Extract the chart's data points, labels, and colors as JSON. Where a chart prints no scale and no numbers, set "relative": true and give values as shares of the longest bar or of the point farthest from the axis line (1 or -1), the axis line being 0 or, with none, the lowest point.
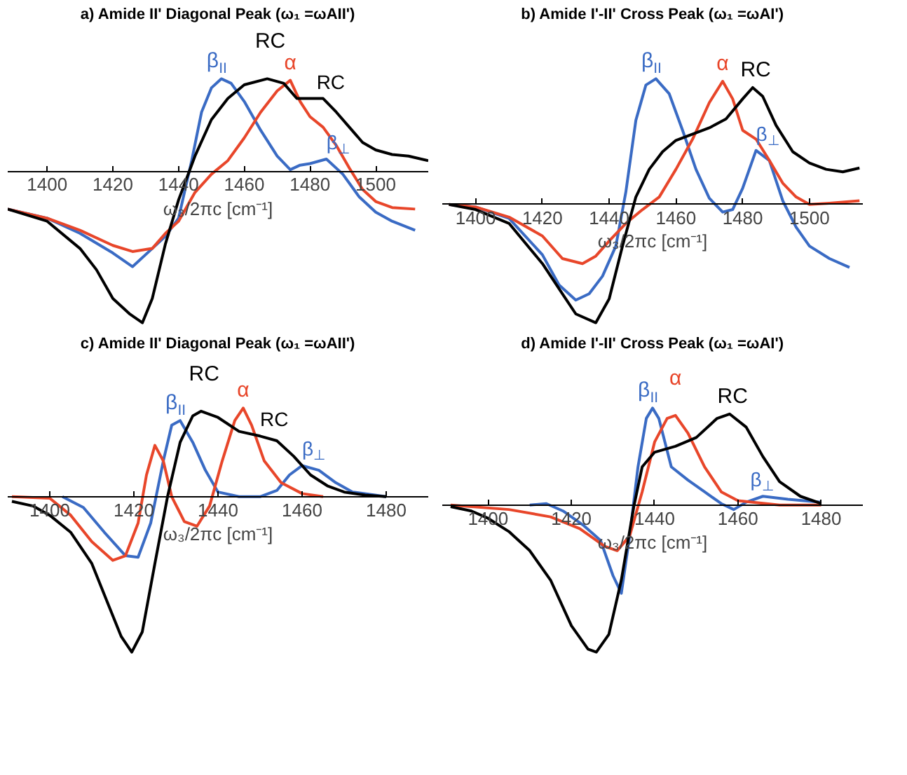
{
  "chart_data": [
    {
      "type": "line",
      "relative": true,
      "title": "a) Amide II' Diagonal Peak (ω₁ =ωAII')",
      "xlabel": "ω₃/2πc [cm⁻¹]",
      "xlim": [
        1388,
        1516
      ],
      "xticks": [
        1400,
        1420,
        1440,
        1460,
        1480,
        1500
      ],
      "annotations": [
        {
          "text": "β$_{⊥}$",
          "x": 1485,
          "y": 0.08
        },
        {
          "text": "RC",
          "x": 1482,
          "y": 0.48
        }
      ],
      "series": [
        {
          "name": "β$_{II}$",
          "color": "#3a6bc4",
          "x": [
            1388,
            1400,
            1410,
            1420,
            1426,
            1432,
            1436,
            1440,
            1444,
            1447,
            1450,
            1453,
            1456,
            1460,
            1465,
            1470,
            1474,
            1477,
            1480,
            1485,
            1490,
            1495,
            1500,
            1505,
            1512
          ],
          "values": [
            -0.25,
            -0.31,
            -0.41,
            -0.54,
            -0.63,
            -0.51,
            -0.43,
            -0.31,
            0.07,
            0.39,
            0.55,
            0.61,
            0.58,
            0.46,
            0.27,
            0.1,
            0.01,
            0.04,
            0.05,
            0.08,
            -0.02,
            -0.17,
            -0.27,
            -0.33,
            -0.39
          ]
        },
        {
          "name": "α",
          "color": "#e8462a",
          "x": [
            1388,
            1400,
            1410,
            1420,
            1426,
            1432,
            1436,
            1440,
            1445,
            1450,
            1455,
            1460,
            1465,
            1470,
            1474,
            1477,
            1480,
            1484,
            1488,
            1492,
            1496,
            1500,
            1505,
            1512
          ],
          "values": [
            -0.25,
            -0.31,
            -0.39,
            -0.49,
            -0.53,
            -0.51,
            -0.41,
            -0.33,
            -0.14,
            -0.02,
            0.07,
            0.22,
            0.39,
            0.53,
            0.6,
            0.46,
            0.36,
            0.29,
            0.17,
            0.02,
            -0.12,
            -0.2,
            -0.24,
            -0.25
          ]
        },
        {
          "name": "RC",
          "color": "#000000",
          "x": [
            1388,
            1400,
            1410,
            1415,
            1420,
            1425,
            1429,
            1432,
            1436,
            1440,
            1445,
            1450,
            1455,
            1460,
            1467,
            1472,
            1476,
            1480,
            1484,
            1488,
            1492,
            1496,
            1500,
            1505,
            1510,
            1516
          ],
          "values": [
            -0.25,
            -0.33,
            -0.51,
            -0.65,
            -0.84,
            -0.94,
            -1.0,
            -0.84,
            -0.48,
            -0.19,
            0.1,
            0.34,
            0.48,
            0.57,
            0.61,
            0.58,
            0.48,
            0.48,
            0.48,
            0.39,
            0.29,
            0.19,
            0.14,
            0.11,
            0.1,
            0.07
          ]
        }
      ]
    },
    {
      "type": "line",
      "relative": true,
      "title": "b) Amide I'-II' Cross Peak (ω₁ =ωAI')",
      "xlabel": "ω₃/2πc [cm⁻¹]",
      "xlim": [
        1390,
        1516
      ],
      "xticks": [
        1400,
        1420,
        1440,
        1460,
        1480,
        1500
      ],
      "annotations": [
        {
          "text": "β$_{⊥}$",
          "x": 1484,
          "y": 0.43
        }
      ],
      "series": [
        {
          "name": "β$_{II}$",
          "color": "#3a6bc4",
          "x": [
            1392,
            1400,
            1410,
            1420,
            1425,
            1430,
            1434,
            1438,
            1442,
            1445,
            1448,
            1451,
            1454,
            1458,
            1462,
            1466,
            1470,
            1474,
            1477,
            1480,
            1484,
            1488,
            1492,
            1496,
            1500,
            1506,
            1512
          ],
          "values": [
            0,
            -0.02,
            -0.11,
            -0.4,
            -0.64,
            -0.76,
            -0.71,
            -0.57,
            -0.33,
            0.1,
            0.67,
            0.95,
            1.0,
            0.88,
            0.59,
            0.28,
            0.05,
            -0.06,
            -0.04,
            0.13,
            0.43,
            0.35,
            0.03,
            -0.18,
            -0.33,
            -0.43,
            -0.5
          ]
        },
        {
          "name": "α",
          "color": "#e8462a",
          "x": [
            1392,
            1400,
            1410,
            1420,
            1426,
            1432,
            1436,
            1440,
            1445,
            1450,
            1455,
            1460,
            1465,
            1470,
            1474,
            1477,
            1480,
            1484,
            1488,
            1492,
            1496,
            1500,
            1506,
            1515
          ],
          "values": [
            0,
            -0.02,
            -0.1,
            -0.25,
            -0.43,
            -0.47,
            -0.41,
            -0.29,
            -0.15,
            -0.04,
            0.06,
            0.28,
            0.52,
            0.81,
            0.98,
            0.84,
            0.59,
            0.52,
            0.35,
            0.17,
            0.06,
            0,
            0.01,
            0.03
          ]
        },
        {
          "name": "RC",
          "color": "#000000",
          "x": [
            1392,
            1400,
            1410,
            1420,
            1426,
            1430,
            1436,
            1440,
            1444,
            1448,
            1452,
            1456,
            1460,
            1465,
            1470,
            1475,
            1480,
            1483,
            1486,
            1490,
            1495,
            1500,
            1505,
            1510,
            1515
          ],
          "values": [
            0,
            -0.04,
            -0.15,
            -0.47,
            -0.71,
            -0.87,
            -0.94,
            -0.75,
            -0.33,
            0.06,
            0.28,
            0.42,
            0.51,
            0.56,
            0.61,
            0.68,
            0.84,
            0.93,
            0.86,
            0.63,
            0.42,
            0.33,
            0.28,
            0.26,
            0.29
          ]
        }
      ]
    },
    {
      "type": "line",
      "relative": true,
      "title": "c) Amide II' Diagonal Peak (ω₁ =ωAII')",
      "xlabel": "ω₃/2πc [cm⁻¹]",
      "xlim": [
        1390,
        1490
      ],
      "xticks": [
        1400,
        1420,
        1440,
        1460,
        1480
      ],
      "annotations": [
        {
          "text": "β$_{⊥}$",
          "x": 1460,
          "y": 0.2
        },
        {
          "text": "RC",
          "x": 1450,
          "y": 0.39
        }
      ],
      "series": [
        {
          "name": "β$_{II}$",
          "color": "#3a6bc4",
          "x": [
            1403,
            1408,
            1413,
            1418,
            1421,
            1424,
            1427,
            1429,
            1431,
            1434,
            1437,
            1440,
            1445,
            1450,
            1454,
            1457,
            1460,
            1464,
            1468,
            1472,
            1480
          ],
          "values": [
            0,
            -0.07,
            -0.23,
            -0.38,
            -0.39,
            -0.17,
            0.23,
            0.46,
            0.49,
            0.35,
            0.17,
            0.03,
            0,
            0,
            0.04,
            0.14,
            0.2,
            0.17,
            0.09,
            0.03,
            0
          ]
        },
        {
          "name": "α",
          "color": "#e8462a",
          "x": [
            1391,
            1400,
            1405,
            1410,
            1415,
            1418,
            1421,
            1423,
            1425,
            1427,
            1429,
            1432,
            1435,
            1438,
            1441,
            1444,
            1446,
            1448,
            1451,
            1455,
            1460,
            1465
          ],
          "values": [
            0,
            -0.01,
            -0.12,
            -0.29,
            -0.41,
            -0.38,
            -0.17,
            0.14,
            0.33,
            0.23,
            0,
            -0.16,
            -0.19,
            -0.06,
            0.23,
            0.49,
            0.57,
            0.46,
            0.23,
            0.09,
            0.02,
            0
          ]
        },
        {
          "name": "RC",
          "color": "#000000",
          "x": [
            1391,
            1396,
            1400,
            1405,
            1410,
            1414,
            1417,
            1419.5,
            1422,
            1425,
            1428,
            1431,
            1434,
            1436,
            1440,
            1445,
            1450,
            1454,
            1458,
            1462,
            1466,
            1470,
            1475,
            1480
          ],
          "values": [
            -0.03,
            -0.06,
            -0.12,
            -0.23,
            -0.43,
            -0.7,
            -0.9,
            -1.0,
            -0.87,
            -0.43,
            0,
            0.35,
            0.52,
            0.55,
            0.51,
            0.42,
            0.39,
            0.36,
            0.26,
            0.14,
            0.07,
            0.03,
            0.01,
            0
          ]
        }
      ]
    },
    {
      "type": "line",
      "relative": true,
      "title": "d) Amide I'-II' Cross Peak (ω₁ =ωAI')",
      "xlabel": "ω₃/2πc [cm⁻¹]",
      "xlim": [
        1389,
        1490
      ],
      "xticks": [
        1400,
        1420,
        1440,
        1460,
        1480
      ],
      "annotations": [
        {
          "text": "β$_{⊥}$",
          "x": 1463,
          "y": 0.06
        }
      ],
      "series": [
        {
          "name": "β$_{II}$",
          "color": "#3a6bc4",
          "x": [
            1410,
            1414,
            1418,
            1423,
            1427,
            1430,
            1432,
            1434,
            1436,
            1438,
            1439.5,
            1441,
            1444,
            1448,
            1452,
            1456,
            1459,
            1462,
            1466,
            1472,
            1480
          ],
          "values": [
            0,
            0.01,
            -0.04,
            -0.14,
            -0.24,
            -0.48,
            -0.6,
            -0.21,
            0.26,
            0.59,
            0.66,
            0.59,
            0.26,
            0.17,
            0.09,
            0.01,
            -0.03,
            0.02,
            0.06,
            0.04,
            0.02
          ]
        },
        {
          "name": "α",
          "color": "#e8462a",
          "x": [
            1391,
            1405,
            1415,
            1422,
            1428,
            1431,
            1434,
            1437,
            1440,
            1443,
            1445,
            1448,
            1452,
            1456,
            1460,
            1470,
            1480
          ],
          "values": [
            0,
            -0.03,
            -0.08,
            -0.16,
            -0.28,
            -0.31,
            -0.21,
            0.09,
            0.43,
            0.59,
            0.61,
            0.49,
            0.26,
            0.09,
            0.03,
            0,
            0
          ]
        },
        {
          "name": "RC",
          "color": "#000000",
          "x": [
            1391,
            1396,
            1400,
            1405,
            1410,
            1415,
            1420,
            1424,
            1426,
            1429,
            1432,
            1435,
            1437,
            1440,
            1445,
            1450,
            1455,
            1458,
            1462,
            1466,
            1470,
            1475,
            1480
          ],
          "values": [
            -0.01,
            -0.04,
            -0.09,
            -0.18,
            -0.31,
            -0.51,
            -0.82,
            -0.98,
            -1.0,
            -0.88,
            -0.51,
            -0.01,
            0.26,
            0.36,
            0.4,
            0.46,
            0.59,
            0.62,
            0.53,
            0.33,
            0.16,
            0.06,
            0.01
          ]
        }
      ]
    }
  ]
}
